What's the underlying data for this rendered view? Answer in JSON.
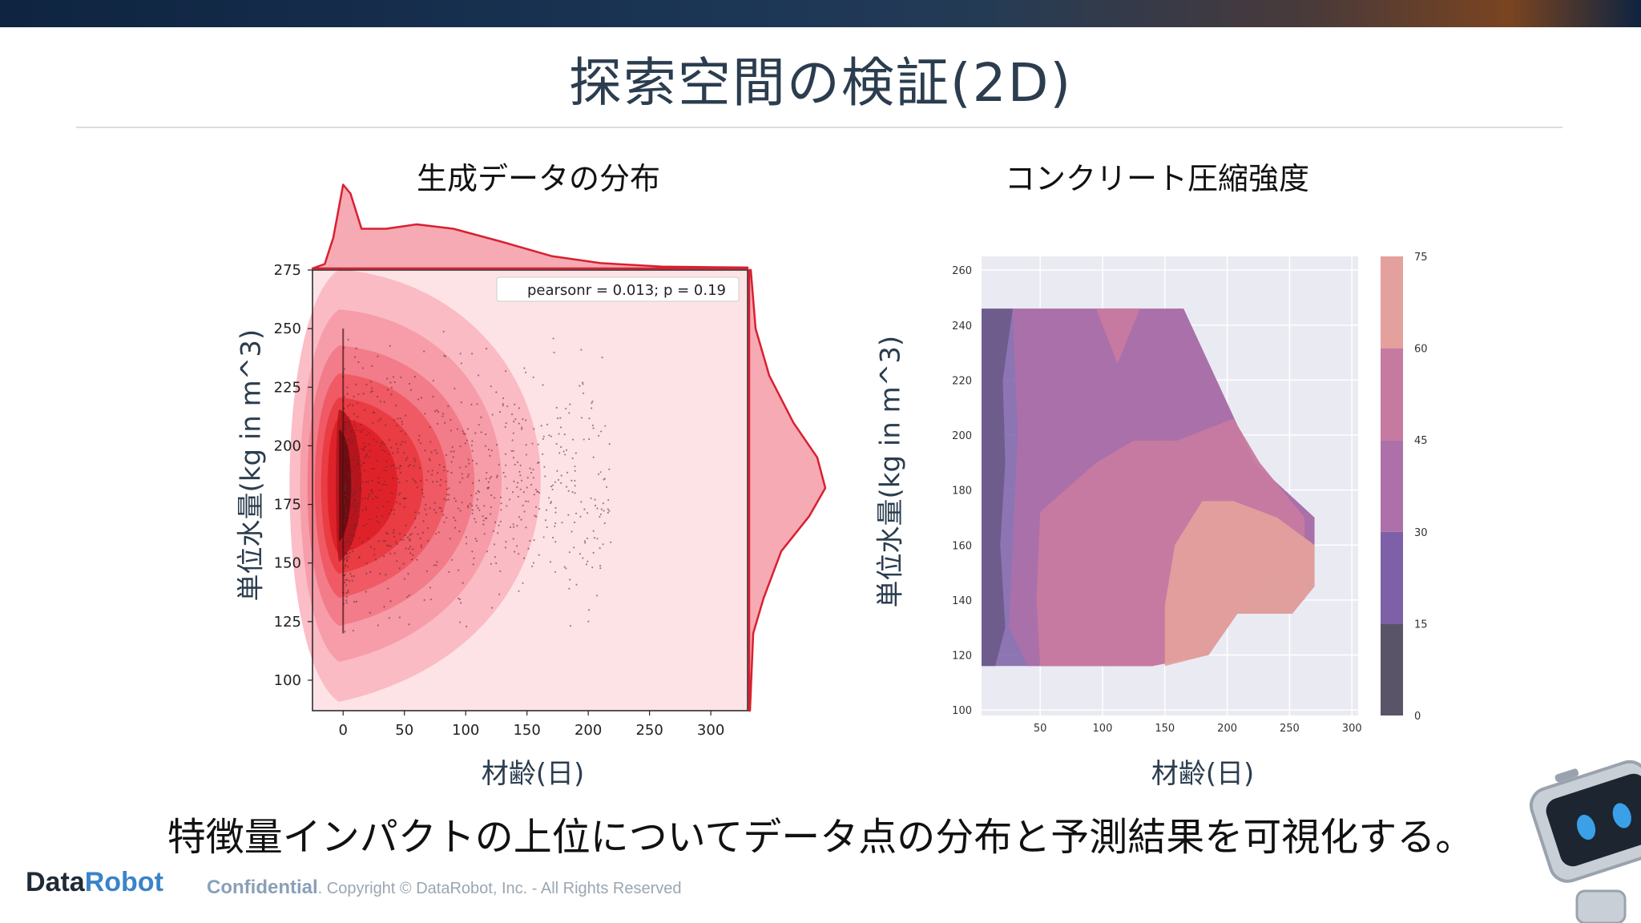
{
  "slide": {
    "title": "探索空間の検証(2D)",
    "caption": "特徴量インパクトの上位についてデータ点の分布と予測結果を可視化する。"
  },
  "footer": {
    "brand_part1": "Data",
    "brand_part2": "Robot",
    "confidential": "Confidential",
    "rights": ". Copyright © DataRobot, Inc. - All Rights Reserved"
  },
  "colors": {
    "accent_red": "#d82030",
    "title": "#2b3d4f",
    "brand_blue": "#3a84c8"
  },
  "icons": [
    "robot-mascot-icon"
  ],
  "chart_data": [
    {
      "type": "scatter",
      "title": "生成データの分布",
      "xlabel": "材齢(日)",
      "ylabel": "単位水量(kg in m^3)",
      "xlim": [
        -25,
        330
      ],
      "ylim": [
        87,
        275
      ],
      "xticks": [
        0,
        50,
        100,
        150,
        200,
        250,
        300
      ],
      "yticks": [
        100,
        125,
        150,
        175,
        200,
        225,
        250,
        275
      ],
      "annotation": "pearsonr = 0.013; p = 0.19",
      "density_center": {
        "x": 0,
        "y": 183
      },
      "kde_x": [
        [
          -25,
          0
        ],
        [
          -15,
          0.05
        ],
        [
          -8,
          0.35
        ],
        [
          0,
          0.95
        ],
        [
          6,
          0.85
        ],
        [
          15,
          0.45
        ],
        [
          35,
          0.45
        ],
        [
          60,
          0.5
        ],
        [
          90,
          0.45
        ],
        [
          130,
          0.3
        ],
        [
          170,
          0.14
        ],
        [
          210,
          0.06
        ],
        [
          260,
          0.02
        ],
        [
          330,
          0.01
        ]
      ],
      "kde_y": [
        [
          87,
          0.01
        ],
        [
          120,
          0.05
        ],
        [
          135,
          0.18
        ],
        [
          155,
          0.4
        ],
        [
          170,
          0.75
        ],
        [
          182,
          0.95
        ],
        [
          195,
          0.85
        ],
        [
          210,
          0.55
        ],
        [
          230,
          0.25
        ],
        [
          250,
          0.08
        ],
        [
          275,
          0.02
        ]
      ],
      "grid": false
    },
    {
      "type": "heatmap",
      "title": "コンクリート圧縮強度",
      "xlabel": "材齢(日)",
      "ylabel": "単位水量(kg in m^3)",
      "xlim": [
        3,
        305
      ],
      "ylim": [
        98,
        265
      ],
      "xticks": [
        50,
        100,
        150,
        200,
        250,
        300
      ],
      "yticks": [
        100,
        120,
        140,
        160,
        180,
        200,
        220,
        240,
        260
      ],
      "colorbar_ticks": [
        0,
        15,
        30,
        45,
        60,
        75
      ],
      "colorbar_colors": [
        "#5a5468",
        "#7d60a8",
        "#ad70a8",
        "#c77aa0",
        "#e3a09c"
      ],
      "grid": true
    }
  ]
}
